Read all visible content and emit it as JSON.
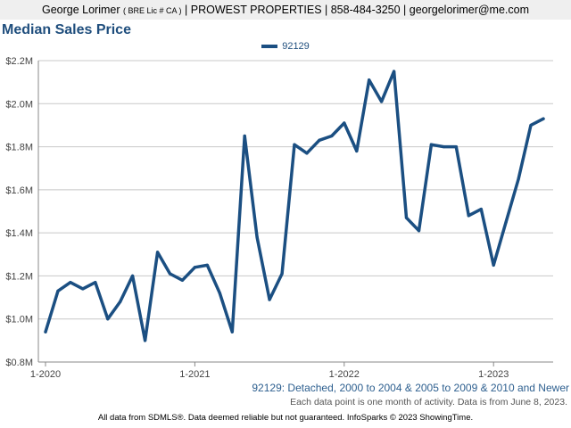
{
  "header": {
    "name": "George Lorimer",
    "license": "( BRE Lic # CA )",
    "rest": "| PROWEST PROPERTIES | 858-484-3250 | georgelorimer@me.com"
  },
  "legend_label": "92129",
  "subtitle": "92129: Detached, 2000 to 2004 & 2005 to 2009 & 2010 and Newer",
  "note": "Each data point is one month of activity. Data is from June 8, 2023.",
  "footer": "All data from SDMLS®. Data deemed reliable but not guaranteed. InfoSparks © 2023 ShowingTime.",
  "colors": {
    "line": "#1b4f82",
    "title": "#1f4e7d",
    "grid": "#c8c8c8"
  },
  "chart_data": {
    "type": "line",
    "title": "Median Sales Price",
    "xlabel": "",
    "ylabel": "",
    "x": [
      "2020-01",
      "2020-02",
      "2020-03",
      "2020-04",
      "2020-05",
      "2020-06",
      "2020-07",
      "2020-08",
      "2020-09",
      "2020-10",
      "2020-11",
      "2020-12",
      "2021-01",
      "2021-02",
      "2021-03",
      "2021-04",
      "2021-05",
      "2021-06",
      "2021-07",
      "2021-08",
      "2021-09",
      "2021-10",
      "2021-11",
      "2021-12",
      "2022-01",
      "2022-02",
      "2022-03",
      "2022-04",
      "2022-05",
      "2022-06",
      "2022-07",
      "2022-08",
      "2022-09",
      "2022-10",
      "2022-11",
      "2022-12",
      "2023-01",
      "2023-02",
      "2023-03",
      "2023-04",
      "2023-05"
    ],
    "x_tick_labels": [
      "1-2020",
      "1-2021",
      "1-2022",
      "1-2023"
    ],
    "y_tick_labels": [
      "$0.8M",
      "$1.0M",
      "$1.2M",
      "$1.4M",
      "$1.6M",
      "$1.8M",
      "$2.0M",
      "$2.2M"
    ],
    "ylim": [
      0.8,
      2.2
    ],
    "y_unit": "$M",
    "grid": true,
    "legend_position": "top-center",
    "series": [
      {
        "name": "92129",
        "values": [
          0.94,
          1.13,
          1.17,
          1.14,
          1.17,
          1.0,
          1.08,
          1.2,
          0.9,
          1.31,
          1.21,
          1.18,
          1.24,
          1.25,
          1.12,
          0.94,
          1.85,
          1.38,
          1.09,
          1.21,
          1.81,
          1.77,
          1.83,
          1.85,
          1.91,
          1.78,
          2.11,
          2.01,
          2.15,
          1.47,
          1.41,
          1.81,
          1.8,
          1.8,
          1.48,
          1.51,
          1.25,
          1.45,
          1.65,
          1.9,
          1.93
        ]
      }
    ]
  }
}
